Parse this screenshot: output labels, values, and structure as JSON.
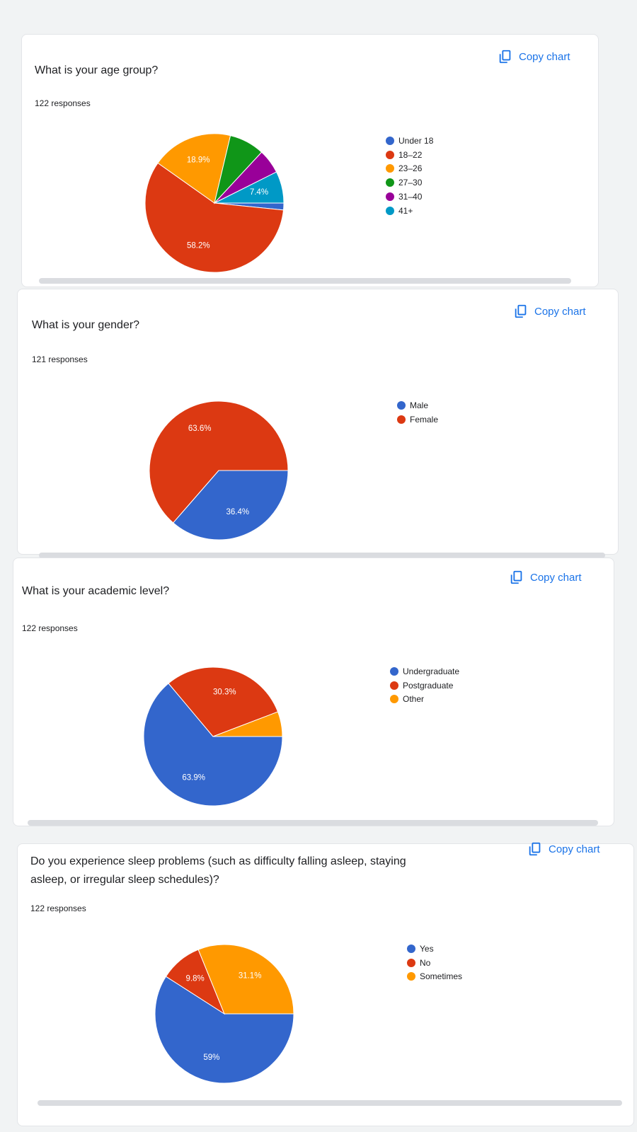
{
  "copy_label": "Copy chart",
  "chart_data": [
    {
      "type": "pie",
      "title": "What is your age group?",
      "responses": "122 responses",
      "slices": [
        {
          "label": "Under 18",
          "value": 1.6,
          "color": "#3366cc"
        },
        {
          "label": "18–22",
          "value": 58.2,
          "display": "58.2%",
          "color": "#dc3912"
        },
        {
          "label": "23–26",
          "value": 18.9,
          "display": "18.9%",
          "color": "#ff9900"
        },
        {
          "label": "27–30",
          "value": 8.2,
          "color": "#109618"
        },
        {
          "label": "31–40",
          "value": 5.7,
          "color": "#990099"
        },
        {
          "label": "41+",
          "value": 7.4,
          "display": "7.4%",
          "color": "#0099c6"
        }
      ],
      "legend_position": "right"
    },
    {
      "type": "pie",
      "title": "What is your gender?",
      "responses": "121 responses",
      "slices": [
        {
          "label": "Male",
          "value": 36.4,
          "display": "36.4%",
          "color": "#3366cc"
        },
        {
          "label": "Female",
          "value": 63.6,
          "display": "63.6%",
          "color": "#dc3912"
        }
      ],
      "legend_position": "right"
    },
    {
      "type": "pie",
      "title": "What is your academic level?",
      "responses": "122 responses",
      "slices": [
        {
          "label": "Undergraduate",
          "value": 63.9,
          "display": "63.9%",
          "color": "#3366cc"
        },
        {
          "label": "Postgraduate",
          "value": 30.3,
          "display": "30.3%",
          "color": "#dc3912"
        },
        {
          "label": "Other",
          "value": 5.8,
          "color": "#ff9900"
        }
      ],
      "legend_position": "right"
    },
    {
      "type": "pie",
      "title_lines": [
        "Do you experience sleep problems (such as difficulty falling asleep, staying",
        "asleep, or irregular sleep schedules)?"
      ],
      "responses": "122 responses",
      "slices": [
        {
          "label": "Yes",
          "value": 59.0,
          "display": "59%",
          "color": "#3366cc"
        },
        {
          "label": "No",
          "value": 9.8,
          "display": "9.8%",
          "color": "#dc3912"
        },
        {
          "label": "Sometimes",
          "value": 31.1,
          "display": "31.1%",
          "color": "#ff9900"
        }
      ],
      "legend_position": "right"
    }
  ]
}
